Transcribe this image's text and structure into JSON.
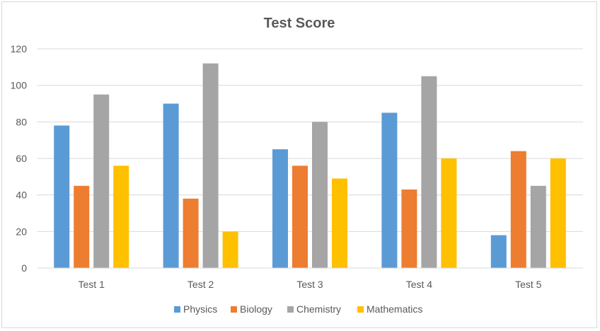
{
  "chart_data": {
    "type": "bar",
    "title": "Test Score",
    "categories": [
      "Test 1",
      "Test 2",
      "Test 3",
      "Test 4",
      "Test 5"
    ],
    "series": [
      {
        "name": "Physics",
        "color": "#5b9bd5",
        "values": [
          78,
          90,
          65,
          85,
          18
        ]
      },
      {
        "name": "Biology",
        "color": "#ed7d31",
        "values": [
          45,
          38,
          56,
          43,
          64
        ]
      },
      {
        "name": "Chemistry",
        "color": "#a5a5a5",
        "values": [
          95,
          112,
          80,
          105,
          45
        ]
      },
      {
        "name": "Mathematics",
        "color": "#ffc000",
        "values": [
          56,
          20,
          49,
          60,
          60
        ]
      }
    ],
    "ylim": [
      0,
      120
    ],
    "yticks": [
      0,
      20,
      40,
      60,
      80,
      100,
      120
    ],
    "grid": true,
    "legend_position": "bottom"
  }
}
